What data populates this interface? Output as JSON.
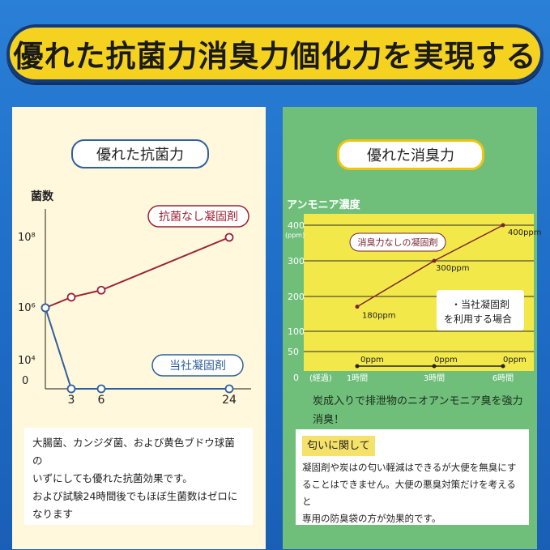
{
  "banner": {
    "title": "優れた抗菌力消臭力個化力を実現する"
  },
  "left": {
    "heading": "優れた抗菌力",
    "note": [
      "大腸菌、カンジダ菌、および黄色ブドウ球菌の",
      "いずにしても優れた抗菌効果です。",
      "および試験24時間後でもほぼ生菌数はゼロに",
      "なります"
    ]
  },
  "right": {
    "heading": "優れた消臭力",
    "caption": [
      "炭成入りで排泄物のニオアンモニア臭を強力",
      "消臭！"
    ],
    "note_tag": "匂いに関して",
    "note": [
      "凝固剤や炭はの匂い軽減はできるが大便を無臭にす",
      "ることはできません。大便の悪臭対策だけを考えると",
      "専用の防臭袋の方が効果的です。"
    ]
  },
  "chart_data": [
    {
      "type": "line",
      "ylabel": "菌数",
      "x": [
        0,
        3,
        6,
        24
      ],
      "xticks": [
        "3",
        "6",
        "24"
      ],
      "yticks": [
        "10⁸",
        "10⁶",
        "10⁴",
        "0"
      ],
      "series": [
        {
          "name": "抗菌なし凝固剤",
          "color": "#9b2335",
          "values": [
            6,
            6.3,
            6.5,
            8
          ]
        },
        {
          "name": "当社凝固剤",
          "color": "#2f5f9e",
          "values": [
            6,
            0,
            0,
            0
          ]
        }
      ]
    },
    {
      "type": "line",
      "title": "アンモニア濃度",
      "yunit": "(ppm)",
      "yticks": [
        "400",
        "300",
        "200",
        "100",
        "50",
        "0"
      ],
      "xticks": [
        "(経過)",
        "1時間",
        "3時間",
        "6時間"
      ],
      "ylim": [
        0,
        400
      ],
      "series": [
        {
          "name": "消臭力なしの凝固剤",
          "color": "#7a2433",
          "x": [
            "1時間",
            "3時間",
            "6時間"
          ],
          "values": [
            180,
            300,
            400
          ],
          "labels": [
            "180ppm",
            "300ppm",
            "400ppm"
          ]
        },
        {
          "name": "当社凝固剤を利用する場合",
          "label_lines": [
            "・当社凝固剤",
            "を利用する場合"
          ],
          "color": "#222222",
          "x": [
            "1時間",
            "3時間",
            "6時間"
          ],
          "values": [
            0,
            0,
            0
          ],
          "labels": [
            "0ppm",
            "0ppm",
            "0ppm"
          ]
        }
      ]
    }
  ]
}
